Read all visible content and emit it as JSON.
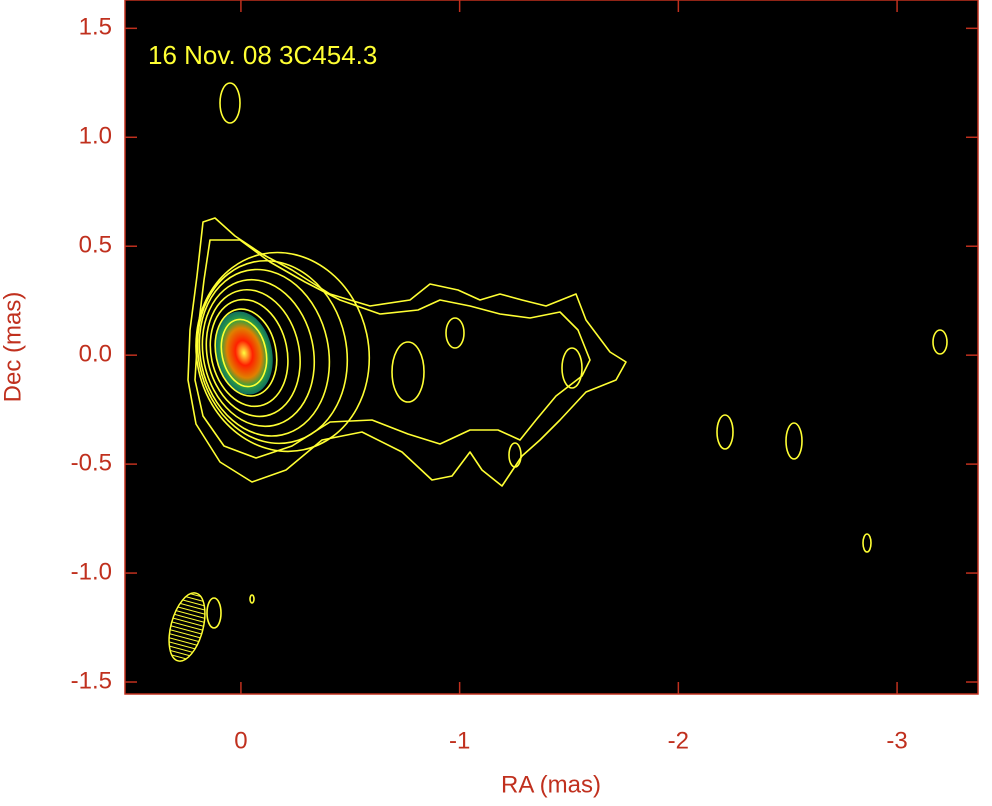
{
  "chart_data": {
    "type": "contour",
    "title": "16 Nov. 08  3C454.3",
    "x_label": "RA (mas)",
    "y_label": "Dec (mas)",
    "xlim": [
      0.53,
      -3.37
    ],
    "ylim": [
      -1.555,
      1.63
    ],
    "xticks": [
      0,
      -1,
      -2,
      -3
    ],
    "yticks": [
      1.5,
      {
        "value": 1,
        "label": "1.0"
      },
      0.5,
      {
        "value": 0,
        "label": "0.0"
      },
      -0.5,
      {
        "value": -1,
        "label": "-1.0"
      },
      -1.5
    ],
    "axis_color": "#c0301e",
    "contour_color": "#ffff33",
    "background": "#000000"
  }
}
